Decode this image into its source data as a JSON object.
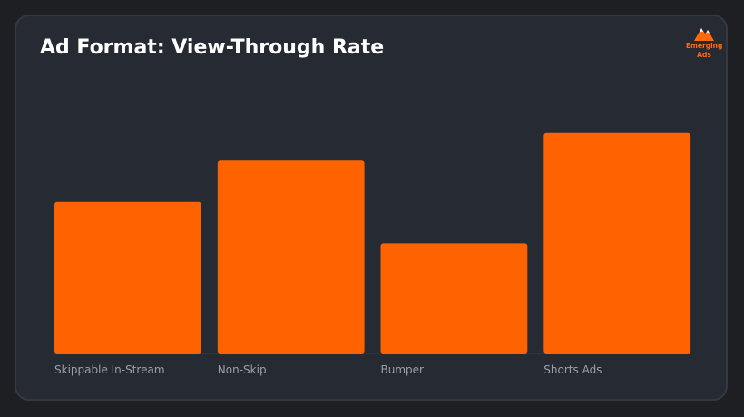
{
  "chart_data": {
    "type": "bar",
    "title": "Ad Format: View-Through Rate",
    "categories": [
      "Skippable In-Stream",
      "Non-Skip",
      "Bumper",
      "Shorts Ads"
    ],
    "values": [
      55,
      70,
      40,
      80
    ],
    "xlabel": "",
    "ylabel": "",
    "ylim": [
      0,
      100
    ],
    "grid": false,
    "bar_color": "#ff6200"
  },
  "brand": {
    "logo_text_1": "Emerging",
    "logo_text_2": "Ads",
    "accent": "#ff6200",
    "icon": "mountain-logo-icon"
  }
}
